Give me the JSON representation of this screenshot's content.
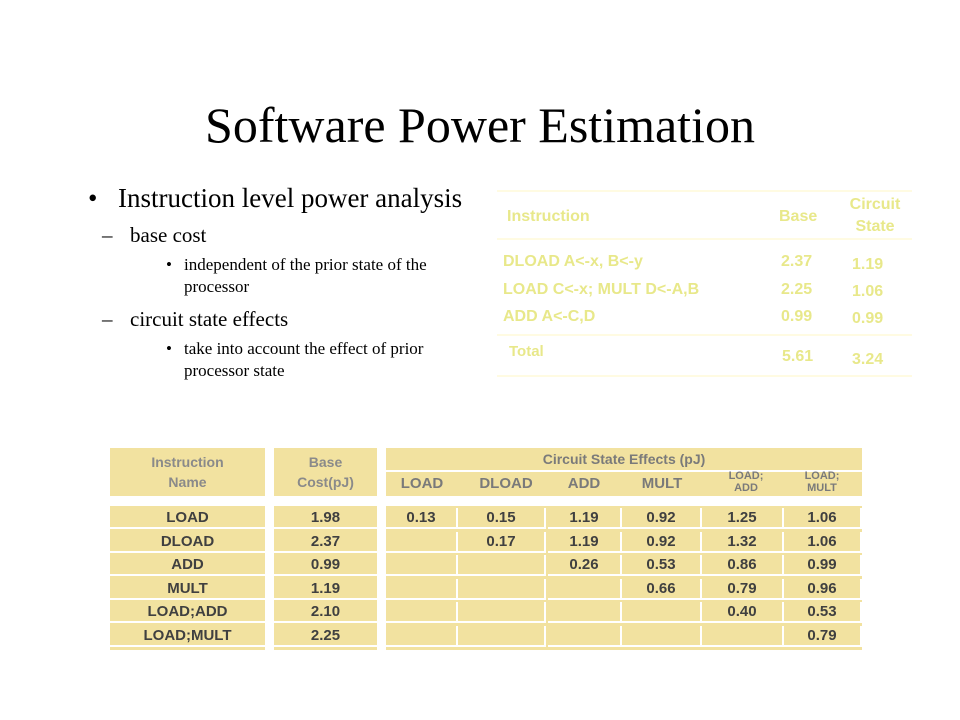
{
  "slide": {
    "title": "Software Power Estimation",
    "bullets": {
      "b1": "Instruction level power analysis",
      "b2a": "base cost",
      "b3a": "independent of the prior state of the processor",
      "b2b": "circuit state effects",
      "b3b": "take into account the effect of prior processor state"
    }
  },
  "top_table": {
    "headers": {
      "instruction": "Instruction",
      "base": "Base",
      "circuit_state": "Circuit State"
    },
    "rows": [
      {
        "instruction": "DLOAD A<-x, B<-y",
        "base": "2.37",
        "circuit": "1.19"
      },
      {
        "instruction": "LOAD C<-x; MULT D<-A,B",
        "base": "2.25",
        "circuit": "1.06"
      },
      {
        "instruction": "ADD A<-C,D",
        "base": "0.99",
        "circuit": "0.99"
      }
    ],
    "total": {
      "label": "Total",
      "base": "5.61",
      "circuit": "3.24"
    }
  },
  "bottom_table": {
    "headers": {
      "instruction_name": "Instruction Name",
      "base_cost": "Base Cost(pJ)",
      "circuit_effects": "Circuit State Effects (pJ)",
      "cols": [
        "LOAD",
        "DLOAD",
        "ADD",
        "MULT",
        "LOAD; ADD",
        "LOAD; MULT"
      ]
    },
    "rows": [
      {
        "name": "LOAD",
        "base": "1.98",
        "effects": [
          "0.13",
          "0.15",
          "1.19",
          "0.92",
          "1.25",
          "1.06"
        ]
      },
      {
        "name": "DLOAD",
        "base": "2.37",
        "effects": [
          "",
          "0.17",
          "1.19",
          "0.92",
          "1.32",
          "1.06"
        ]
      },
      {
        "name": "ADD",
        "base": "0.99",
        "effects": [
          "",
          "",
          "0.26",
          "0.53",
          "0.86",
          "0.99"
        ]
      },
      {
        "name": "MULT",
        "base": "1.19",
        "effects": [
          "",
          "",
          "",
          "0.66",
          "0.79",
          "0.96"
        ]
      },
      {
        "name": "LOAD;ADD",
        "base": "2.10",
        "effects": [
          "",
          "",
          "",
          "",
          "0.40",
          "0.53"
        ]
      },
      {
        "name": "LOAD;MULT",
        "base": "2.25",
        "effects": [
          "",
          "",
          "",
          "",
          "",
          "0.79"
        ]
      }
    ]
  }
}
